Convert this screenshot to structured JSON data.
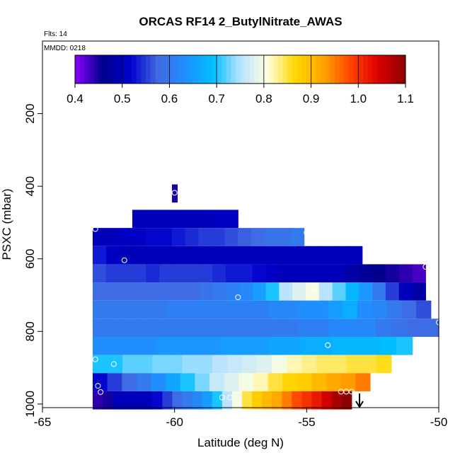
{
  "chart_data": {
    "type": "heatmap",
    "title": "ORCAS RF14 2_ButylNitrate_AWAS",
    "flights_label": "Flts: 14",
    "date_label": "MMDD: 0218",
    "xlabel": "Latitude (deg N)",
    "ylabel": "PSXC (mbar)",
    "xlim": [
      -65,
      -50
    ],
    "ylim": [
      1010,
      0
    ],
    "xticks": [
      -65,
      -60,
      -55,
      -50
    ],
    "yticks": [
      200,
      400,
      600,
      800,
      1000
    ],
    "colorbar": {
      "min": 0.4,
      "max": 1.1,
      "ticks": [
        0.4,
        0.5,
        0.6,
        0.7,
        0.8,
        0.9,
        1.0,
        1.1
      ],
      "tick_labels": [
        "0.4",
        "0.5",
        "0.6",
        "0.7",
        "0.8",
        "0.9",
        "1.0",
        "1.1"
      ]
    },
    "band_height_mbar": 50,
    "bands": [
      {
        "center": 420,
        "height": 50,
        "x_start": -60.1,
        "x_end": -59.9,
        "values": [
          0.45
        ]
      },
      {
        "center": 490,
        "height": 50,
        "x_start": -61.6,
        "x_end": -57.6,
        "values": [
          0.5,
          0.5,
          0.5,
          0.5,
          0.5,
          0.5,
          0.5,
          0.51,
          0.51
        ]
      },
      {
        "center": 540,
        "height": 50,
        "x_start": -63.1,
        "x_end": -55.1,
        "values": [
          0.5,
          0.5,
          0.51,
          0.51,
          0.52,
          0.52,
          0.53,
          0.54,
          0.55,
          0.55,
          0.56,
          0.57,
          0.58,
          0.59,
          0.59,
          0.6
        ]
      },
      {
        "center": 590,
        "height": 50,
        "x_start": -63.1,
        "x_end": -52.9,
        "values": [
          0.53,
          0.51,
          0.5,
          0.5,
          0.5,
          0.5,
          0.5,
          0.5,
          0.5,
          0.5,
          0.5,
          0.5,
          0.5,
          0.5,
          0.5,
          0.5,
          0.5,
          0.5,
          0.5,
          0.5
        ]
      },
      {
        "center": 640,
        "height": 50,
        "x_start": -63.1,
        "x_end": -50.5,
        "values": [
          0.56,
          0.55,
          0.55,
          0.55,
          0.54,
          0.55,
          0.55,
          0.55,
          0.55,
          0.54,
          0.53,
          0.53,
          0.52,
          0.51,
          0.5,
          0.5,
          0.5,
          0.5,
          0.5,
          0.48,
          0.47,
          0.46,
          0.45,
          0.44,
          0.43
        ]
      },
      {
        "center": 690,
        "height": 50,
        "x_start": -63.1,
        "x_end": -50.5,
        "values": [
          0.58,
          0.58,
          0.58,
          0.58,
          0.58,
          0.58,
          0.58,
          0.58,
          0.59,
          0.6,
          0.61,
          0.62,
          0.65,
          0.7,
          0.75,
          0.78,
          0.8,
          0.75,
          0.72,
          0.68,
          0.64,
          0.6,
          0.55,
          0.5,
          0.48
        ]
      },
      {
        "center": 740,
        "height": 50,
        "x_start": -63.1,
        "x_end": -50.3,
        "values": [
          0.6,
          0.6,
          0.6,
          0.6,
          0.6,
          0.61,
          0.61,
          0.61,
          0.61,
          0.61,
          0.61,
          0.61,
          0.62,
          0.62,
          0.63,
          0.63,
          0.65,
          0.67,
          0.63,
          0.62,
          0.6,
          0.58,
          0.56
        ]
      },
      {
        "center": 790,
        "height": 50,
        "x_start": -63.1,
        "x_end": -50.0,
        "values": [
          0.6,
          0.6,
          0.6,
          0.6,
          0.6,
          0.6,
          0.6,
          0.6,
          0.6,
          0.6,
          0.6,
          0.6,
          0.6,
          0.61,
          0.61,
          0.62,
          0.62,
          0.62,
          0.6,
          0.59,
          0.58,
          0.58
        ]
      },
      {
        "center": 840,
        "height": 50,
        "x_start": -63.1,
        "x_end": -51.0,
        "values": [
          0.63,
          0.63,
          0.63,
          0.63,
          0.64,
          0.64,
          0.64,
          0.64,
          0.65,
          0.65,
          0.65,
          0.66,
          0.66,
          0.67,
          0.67,
          0.68,
          0.68,
          0.68,
          0.69,
          0.7
        ]
      },
      {
        "center": 890,
        "height": 50,
        "x_start": -63.1,
        "x_end": -51.8,
        "values": [
          0.7,
          0.7,
          0.72,
          0.72,
          0.73,
          0.73,
          0.74,
          0.74,
          0.75,
          0.76,
          0.77,
          0.78,
          0.8,
          0.82,
          0.83,
          0.84,
          0.84,
          0.85,
          0.85,
          0.86
        ]
      },
      {
        "center": 940,
        "height": 50,
        "x_start": -63.1,
        "x_end": -52.6,
        "values": [
          0.52,
          0.55,
          0.58,
          0.6,
          0.63,
          0.66,
          0.7,
          0.73,
          0.76,
          0.78,
          0.8,
          0.82,
          0.85,
          0.87,
          0.88,
          0.9,
          0.92,
          0.93,
          0.95
        ]
      },
      {
        "center": 990,
        "height": 50,
        "x_start": -63.1,
        "x_end": -53.3,
        "values": [
          0.44,
          0.45,
          0.5,
          0.5,
          0.5,
          0.5,
          0.52,
          0.55,
          0.58,
          0.6,
          0.62,
          0.65,
          0.7,
          0.75,
          0.8,
          0.85,
          0.88,
          0.9,
          0.92,
          0.95,
          0.98,
          1.0,
          1.02,
          1.05,
          1.08,
          1.1
        ]
      }
    ],
    "sample_points": [
      {
        "lat": -60.0,
        "p": 418
      },
      {
        "lat": -63.0,
        "p": 518
      },
      {
        "lat": -55.0,
        "p": 528
      },
      {
        "lat": -61.9,
        "p": 604
      },
      {
        "lat": -50.5,
        "p": 622
      },
      {
        "lat": -57.6,
        "p": 706
      },
      {
        "lat": -54.7,
        "p": 679
      },
      {
        "lat": -50.0,
        "p": 775
      },
      {
        "lat": -54.2,
        "p": 838
      },
      {
        "lat": -63.0,
        "p": 877
      },
      {
        "lat": -62.3,
        "p": 890
      },
      {
        "lat": -62.9,
        "p": 950
      },
      {
        "lat": -62.8,
        "p": 967
      },
      {
        "lat": -58.2,
        "p": 982
      },
      {
        "lat": -57.9,
        "p": 982
      },
      {
        "lat": -53.7,
        "p": 966
      },
      {
        "lat": -53.5,
        "p": 966
      },
      {
        "lat": -53.3,
        "p": 966
      }
    ],
    "arrow_marker": {
      "lat": -53.0,
      "direction": "down"
    },
    "grid": false
  },
  "palette": [
    "#8b00ff",
    "#00008b",
    "#0000cd",
    "#4169e1",
    "#1e90ff",
    "#00bfff",
    "#b9e3ff",
    "#ffffe0",
    "#ffd700",
    "#ffa500",
    "#ff4500",
    "#dc0000",
    "#8b0000"
  ]
}
